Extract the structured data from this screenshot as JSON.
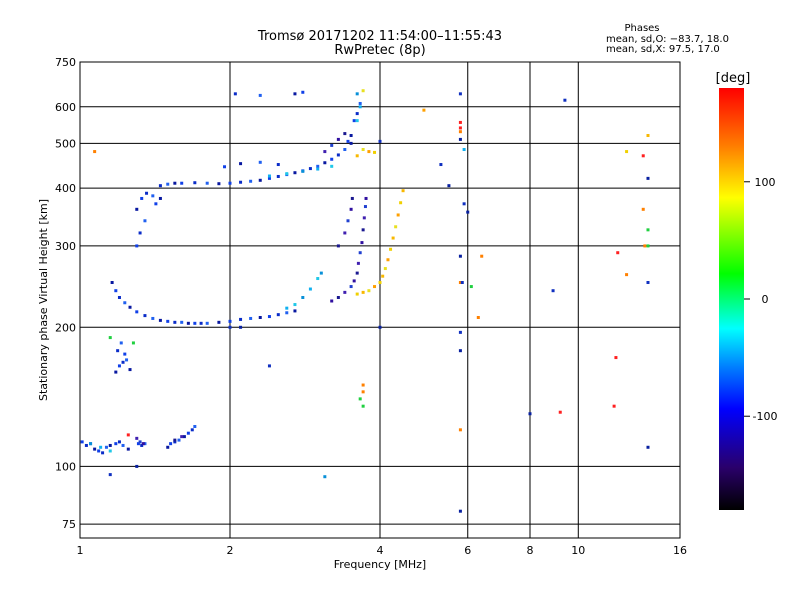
{
  "chart_data": {
    "type": "scatter",
    "title": "Tromsø 20171202 11:54:00–11:55:43",
    "subtitle": "RwPretec (8p)",
    "xlabel": "Frequency [MHz]",
    "ylabel": "Stationary phase Virtual Height [km]",
    "xscale": "log",
    "yscale": "log",
    "xlim": [
      1,
      16
    ],
    "ylim": [
      70,
      750
    ],
    "xticks": [
      1,
      2,
      4,
      6,
      8,
      10,
      16
    ],
    "xtick_labels": [
      "1",
      "2",
      "4",
      "6",
      "8",
      "10",
      "16"
    ],
    "yticks": [
      75,
      100,
      200,
      300,
      400,
      500,
      600,
      750
    ],
    "ytick_labels": [
      "75",
      "100",
      "200",
      "300",
      "400",
      "500",
      "600",
      "750"
    ],
    "grid": true,
    "phase_info": {
      "heading": "Phases",
      "line_o": "mean, sd,O: −83.7, 18.0",
      "line_x": "mean, sd,X:  97.5, 17.0"
    },
    "colorbar": {
      "label": "[deg]",
      "range": [
        -180,
        180
      ],
      "ticks": [
        100,
        0,
        -100
      ],
      "tick_labels": [
        "100",
        "0",
        "-100"
      ],
      "colors": [
        "#ff0000",
        "#ff8000",
        "#ffff00",
        "#00ff00",
        "#00ffff",
        "#0000ff",
        "#000040",
        "#000000"
      ]
    },
    "series": [
      {
        "phase": "blue",
        "points": [
          [
            1.01,
            113
          ],
          [
            1.03,
            111
          ],
          [
            1.05,
            112
          ],
          [
            1.07,
            109
          ],
          [
            1.09,
            108
          ],
          [
            1.11,
            107
          ],
          [
            1.13,
            110
          ],
          [
            1.15,
            111
          ],
          [
            1.18,
            112
          ],
          [
            1.2,
            113
          ],
          [
            1.22,
            111
          ],
          [
            1.25,
            109
          ],
          [
            1.31,
            112
          ],
          [
            1.33,
            111
          ],
          [
            1.35,
            112
          ],
          [
            1.18,
            160
          ],
          [
            1.2,
            165
          ],
          [
            1.22,
            168
          ],
          [
            1.24,
            170
          ],
          [
            1.26,
            162
          ],
          [
            1.23,
            175
          ],
          [
            1.19,
            178
          ],
          [
            1.21,
            185
          ],
          [
            1.5,
            110
          ],
          [
            1.52,
            112
          ],
          [
            1.55,
            113
          ],
          [
            1.58,
            114
          ],
          [
            1.62,
            116
          ],
          [
            1.65,
            118
          ],
          [
            1.68,
            120
          ],
          [
            1.7,
            122
          ],
          [
            1.16,
            250
          ],
          [
            1.18,
            240
          ],
          [
            1.2,
            232
          ],
          [
            1.23,
            226
          ],
          [
            1.26,
            221
          ],
          [
            1.3,
            216
          ],
          [
            1.35,
            212
          ],
          [
            1.4,
            209
          ],
          [
            1.45,
            207
          ],
          [
            1.5,
            206
          ],
          [
            1.55,
            205
          ],
          [
            1.6,
            205
          ],
          [
            1.65,
            204
          ],
          [
            1.7,
            204
          ],
          [
            1.75,
            204
          ],
          [
            1.8,
            204
          ],
          [
            1.9,
            205
          ],
          [
            2.0,
            206
          ],
          [
            2.1,
            208
          ],
          [
            2.2,
            209
          ],
          [
            2.3,
            210
          ],
          [
            2.4,
            211
          ],
          [
            2.5,
            213
          ],
          [
            2.6,
            215
          ],
          [
            2.7,
            217
          ],
          [
            1.3,
            300
          ],
          [
            1.32,
            320
          ],
          [
            1.35,
            340
          ],
          [
            1.3,
            360
          ],
          [
            1.33,
            380
          ],
          [
            1.36,
            390
          ],
          [
            1.4,
            385
          ],
          [
            1.45,
            380
          ],
          [
            1.42,
            370
          ],
          [
            1.45,
            405
          ],
          [
            1.5,
            408
          ],
          [
            1.55,
            410
          ],
          [
            1.6,
            410
          ],
          [
            1.7,
            411
          ],
          [
            1.8,
            410
          ],
          [
            1.9,
            409
          ],
          [
            2.0,
            410
          ],
          [
            2.1,
            412
          ],
          [
            2.2,
            414
          ],
          [
            2.3,
            416
          ],
          [
            2.4,
            420
          ],
          [
            2.5,
            424
          ],
          [
            2.6,
            428
          ],
          [
            2.7,
            432
          ],
          [
            2.8,
            436
          ],
          [
            2.9,
            441
          ],
          [
            3.0,
            446
          ],
          [
            3.1,
            454
          ],
          [
            3.2,
            462
          ],
          [
            3.3,
            472
          ],
          [
            3.4,
            485
          ],
          [
            3.5,
            500
          ],
          [
            3.55,
            560
          ],
          [
            3.6,
            580
          ],
          [
            3.65,
            610
          ],
          [
            3.5,
            520
          ],
          [
            3.45,
            505
          ],
          [
            2.5,
            450
          ],
          [
            2.3,
            455
          ],
          [
            2.1,
            452
          ],
          [
            1.95,
            445
          ],
          [
            2.05,
            640
          ],
          [
            2.3,
            635
          ],
          [
            2.7,
            640
          ],
          [
            2.8,
            645
          ]
        ]
      },
      {
        "phase": "purple",
        "points": [
          [
            3.2,
            228
          ],
          [
            3.3,
            232
          ],
          [
            3.4,
            238
          ],
          [
            3.5,
            245
          ],
          [
            3.55,
            252
          ],
          [
            3.6,
            262
          ],
          [
            3.62,
            275
          ],
          [
            3.65,
            290
          ],
          [
            3.68,
            305
          ],
          [
            3.7,
            325
          ],
          [
            3.72,
            345
          ],
          [
            3.74,
            365
          ],
          [
            3.75,
            380
          ],
          [
            3.3,
            300
          ],
          [
            3.4,
            320
          ],
          [
            3.45,
            340
          ],
          [
            3.5,
            360
          ],
          [
            3.52,
            380
          ],
          [
            3.1,
            480
          ],
          [
            3.2,
            495
          ],
          [
            3.3,
            510
          ],
          [
            3.4,
            525
          ],
          [
            1.3,
            115
          ],
          [
            1.32,
            113
          ],
          [
            1.34,
            112
          ],
          [
            1.55,
            114
          ],
          [
            1.6,
            116
          ]
        ]
      },
      {
        "phase": "cyan",
        "points": [
          [
            2.6,
            220
          ],
          [
            2.7,
            224
          ],
          [
            2.8,
            232
          ],
          [
            2.9,
            242
          ],
          [
            3.0,
            255
          ],
          [
            3.05,
            262
          ],
          [
            2.4,
            425
          ],
          [
            2.6,
            430
          ],
          [
            2.8,
            435
          ],
          [
            3.0,
            440
          ],
          [
            3.2,
            446
          ],
          [
            3.6,
            640
          ],
          [
            3.65,
            600
          ],
          [
            3.6,
            560
          ],
          [
            1.05,
            112
          ],
          [
            1.1,
            110
          ],
          [
            1.15,
            108
          ],
          [
            3.1,
            95
          ],
          [
            5.9,
            485
          ]
        ]
      },
      {
        "phase": "yellow",
        "points": [
          [
            3.6,
            236
          ],
          [
            3.7,
            238
          ],
          [
            3.8,
            240
          ],
          [
            3.9,
            245
          ],
          [
            4.0,
            250
          ],
          [
            4.05,
            258
          ],
          [
            4.1,
            268
          ],
          [
            4.15,
            280
          ],
          [
            4.2,
            295
          ],
          [
            4.25,
            312
          ],
          [
            4.3,
            330
          ],
          [
            4.35,
            350
          ],
          [
            4.4,
            372
          ],
          [
            4.45,
            395
          ],
          [
            3.7,
            485
          ],
          [
            3.8,
            480
          ],
          [
            3.9,
            478
          ],
          [
            3.6,
            470
          ],
          [
            3.7,
            650
          ],
          [
            4.9,
            590
          ],
          [
            12.5,
            480
          ],
          [
            13.8,
            520
          ]
        ]
      },
      {
        "phase": "orange",
        "points": [
          [
            1.07,
            480
          ],
          [
            6.4,
            285
          ],
          [
            6.3,
            210
          ],
          [
            5.8,
            250
          ],
          [
            12.5,
            260
          ],
          [
            13.5,
            360
          ],
          [
            13.6,
            300
          ],
          [
            3.7,
            145
          ],
          [
            3.7,
            150
          ],
          [
            5.8,
            120
          ],
          [
            5.8,
            530
          ]
        ]
      },
      {
        "phase": "red",
        "points": [
          [
            1.25,
            117
          ],
          [
            9.2,
            131
          ],
          [
            11.8,
            135
          ],
          [
            11.9,
            172
          ],
          [
            12.0,
            290
          ],
          [
            13.5,
            470
          ],
          [
            5.8,
            555
          ],
          [
            5.8,
            540
          ]
        ]
      },
      {
        "phase": "green",
        "points": [
          [
            1.15,
            190
          ],
          [
            13.8,
            325
          ],
          [
            13.8,
            300
          ],
          [
            6.1,
            245
          ],
          [
            1.28,
            185
          ],
          [
            3.65,
            140
          ],
          [
            3.7,
            135
          ]
        ]
      },
      {
        "phase": "sparse-blue",
        "points": [
          [
            5.8,
            640
          ],
          [
            5.8,
            510
          ],
          [
            5.9,
            370
          ],
          [
            5.8,
            285
          ],
          [
            5.85,
            250
          ],
          [
            6.0,
            355
          ],
          [
            5.8,
            195
          ],
          [
            5.8,
            178
          ],
          [
            8.9,
            240
          ],
          [
            8.0,
            130
          ],
          [
            9.4,
            620
          ],
          [
            13.8,
            110
          ],
          [
            13.8,
            250
          ],
          [
            13.8,
            420
          ],
          [
            4.0,
            505
          ],
          [
            4.0,
            200
          ],
          [
            2.4,
            165
          ],
          [
            1.3,
            100
          ],
          [
            1.15,
            96
          ],
          [
            5.8,
            80
          ],
          [
            5.3,
            450
          ],
          [
            5.5,
            405
          ],
          [
            2.0,
            200
          ],
          [
            2.1,
            200
          ]
        ]
      }
    ]
  }
}
